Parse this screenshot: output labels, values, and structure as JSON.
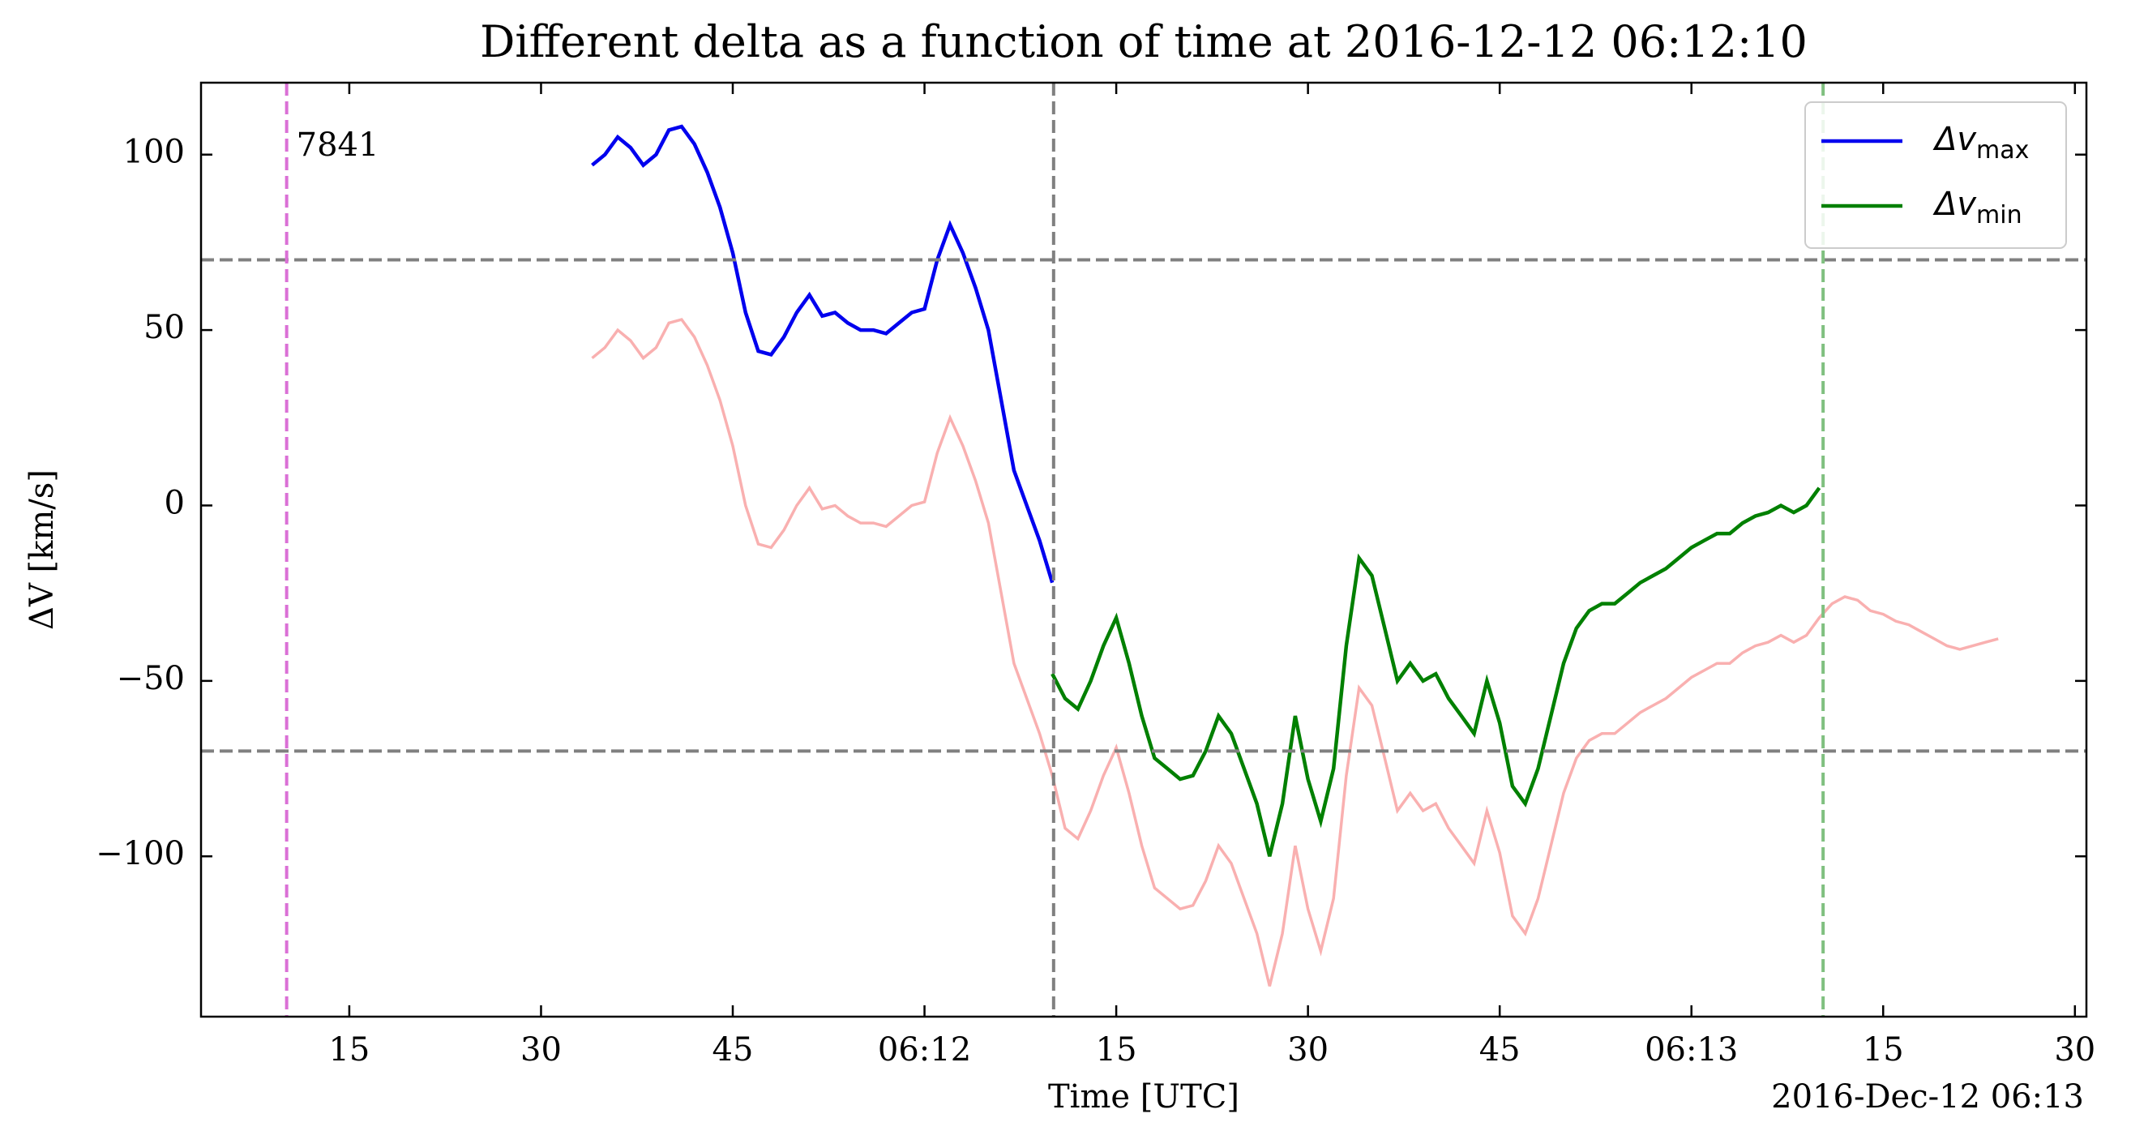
{
  "chart_data": {
    "type": "line",
    "title": "Different delta as a function of time at 2016-12-12 06:12:10",
    "xlabel": "Time [UTC]",
    "ylabel": "ΔV [km/s]",
    "offset_label": "2016-Dec-12 06:13",
    "xlim": [
      "06:11:03.4",
      "06:13:30.9"
    ],
    "ylim": [
      -145.7,
      120.5
    ],
    "xticks": [
      {
        "value": "06:11:15",
        "label": "15"
      },
      {
        "value": "06:11:30",
        "label": "30"
      },
      {
        "value": "06:11:45",
        "label": "45"
      },
      {
        "value": "06:12:00",
        "label": "06:12"
      },
      {
        "value": "06:12:15",
        "label": "15"
      },
      {
        "value": "06:12:30",
        "label": "30"
      },
      {
        "value": "06:12:45",
        "label": "45"
      },
      {
        "value": "06:13:00",
        "label": "06:13"
      },
      {
        "value": "06:13:15",
        "label": "15"
      },
      {
        "value": "06:13:30",
        "label": "30"
      }
    ],
    "yticks": [
      {
        "value": -100,
        "label": "−100"
      },
      {
        "value": -50,
        "label": "−50"
      },
      0,
      50,
      100
    ],
    "legend": "upper right",
    "hlines": [
      70,
      -70
    ],
    "vlines": [
      {
        "x": "06:11:10.1",
        "color": "#da70d6"
      },
      {
        "x": "06:12:10.1",
        "color": "#808080"
      },
      {
        "x": "06:13:10.3",
        "color": "#80c080"
      }
    ],
    "annotation": {
      "text": "7841",
      "color": "#008000"
    },
    "series": [
      {
        "color": "#f9b0b0",
        "x": [
          "06:11:34",
          "06:11:35",
          "06:11:36",
          "06:11:37",
          "06:11:38",
          "06:11:39",
          "06:11:40",
          "06:11:41",
          "06:11:42",
          "06:11:43",
          "06:11:44",
          "06:11:45",
          "06:11:46",
          "06:11:47",
          "06:11:48",
          "06:11:49",
          "06:11:50",
          "06:11:51",
          "06:11:52",
          "06:11:53",
          "06:11:54",
          "06:11:55",
          "06:11:56",
          "06:11:57",
          "06:11:58",
          "06:11:59",
          "06:12:00",
          "06:12:01",
          "06:12:02",
          "06:12:03",
          "06:12:04",
          "06:12:05",
          "06:12:06",
          "06:12:07",
          "06:12:08",
          "06:12:09",
          "06:12:10",
          "06:12:11",
          "06:12:12",
          "06:12:13",
          "06:12:14",
          "06:12:15",
          "06:12:16",
          "06:12:17",
          "06:12:18",
          "06:12:19",
          "06:12:20",
          "06:12:21",
          "06:12:22",
          "06:12:23",
          "06:12:24",
          "06:12:25",
          "06:12:26",
          "06:12:27",
          "06:12:28",
          "06:12:29",
          "06:12:30",
          "06:12:31",
          "06:12:32",
          "06:12:33",
          "06:12:34",
          "06:12:35",
          "06:12:36",
          "06:12:37",
          "06:12:38",
          "06:12:39",
          "06:12:40",
          "06:12:41",
          "06:12:42",
          "06:12:43",
          "06:12:44",
          "06:12:45",
          "06:12:46",
          "06:12:47",
          "06:12:48",
          "06:12:49",
          "06:12:50",
          "06:12:51",
          "06:12:52",
          "06:12:53",
          "06:12:54",
          "06:12:55",
          "06:12:56",
          "06:12:57",
          "06:12:58",
          "06:12:59",
          "06:13:00",
          "06:13:01",
          "06:13:02",
          "06:13:03",
          "06:13:04",
          "06:13:05",
          "06:13:06",
          "06:13:07",
          "06:13:08",
          "06:13:09",
          "06:13:10",
          "06:13:11",
          "06:13:12",
          "06:13:13",
          "06:13:14",
          "06:13:15",
          "06:13:16",
          "06:13:17",
          "06:13:18",
          "06:13:19",
          "06:13:20",
          "06:13:21",
          "06:13:22",
          "06:13:23",
          "06:13:24"
        ],
        "values": [
          42,
          45,
          50,
          47,
          42,
          45,
          52,
          53,
          48,
          40,
          30,
          17,
          0,
          -11,
          -12,
          -7,
          0,
          5,
          -1,
          0,
          -3,
          -5,
          -5,
          -6,
          -3,
          0,
          1,
          15,
          25,
          17,
          7,
          -5,
          -25,
          -45,
          -55,
          -65,
          -77,
          -92,
          -95,
          -87,
          -77,
          -69,
          -82,
          -97,
          -109,
          -112,
          -115,
          -114,
          -107,
          -97,
          -102,
          -112,
          -122,
          -137,
          -122,
          -97,
          -115,
          -127,
          -112,
          -77,
          -52,
          -57,
          -72,
          -87,
          -82,
          -87,
          -85,
          -92,
          -97,
          -102,
          -87,
          -99,
          -117,
          -122,
          -112,
          -97,
          -82,
          -72,
          -67,
          -65,
          -65,
          -62,
          -59,
          -57,
          -55,
          -52,
          -49,
          -47,
          -45,
          -45,
          -42,
          -40,
          -39,
          -37,
          -39,
          -37,
          -32,
          -28,
          -26,
          -27,
          -30,
          -31,
          -33,
          -34,
          -36,
          -38,
          -40,
          -41,
          -40,
          -39,
          -38
        ]
      },
      {
        "name": "Δv",
        "subscript": "max",
        "color": "#0000ee",
        "x": [
          "06:11:34",
          "06:11:35",
          "06:11:36",
          "06:11:37",
          "06:11:38",
          "06:11:39",
          "06:11:40",
          "06:11:41",
          "06:11:42",
          "06:11:43",
          "06:11:44",
          "06:11:45",
          "06:11:46",
          "06:11:47",
          "06:11:48",
          "06:11:49",
          "06:11:50",
          "06:11:51",
          "06:11:52",
          "06:11:53",
          "06:11:54",
          "06:11:55",
          "06:11:56",
          "06:11:57",
          "06:11:58",
          "06:11:59",
          "06:12:00",
          "06:12:01",
          "06:12:02",
          "06:12:03",
          "06:12:04",
          "06:12:05",
          "06:12:06",
          "06:12:07",
          "06:12:08",
          "06:12:09",
          "06:12:10"
        ],
        "values": [
          97,
          100,
          105,
          102,
          97,
          100,
          107,
          108,
          103,
          95,
          85,
          72,
          55,
          44,
          43,
          48,
          55,
          60,
          54,
          55,
          52,
          50,
          50,
          49,
          52,
          55,
          56,
          70,
          80,
          72,
          62,
          50,
          30,
          10,
          0,
          -10,
          -22
        ]
      },
      {
        "name": "Δv",
        "subscript": "min",
        "color": "#008000",
        "x": [
          "06:12:10",
          "06:12:11",
          "06:12:12",
          "06:12:13",
          "06:12:14",
          "06:12:15",
          "06:12:16",
          "06:12:17",
          "06:12:18",
          "06:12:19",
          "06:12:20",
          "06:12:21",
          "06:12:22",
          "06:12:23",
          "06:12:24",
          "06:12:25",
          "06:12:26",
          "06:12:27",
          "06:12:28",
          "06:12:29",
          "06:12:30",
          "06:12:31",
          "06:12:32",
          "06:12:33",
          "06:12:34",
          "06:12:35",
          "06:12:36",
          "06:12:37",
          "06:12:38",
          "06:12:39",
          "06:12:40",
          "06:12:41",
          "06:12:42",
          "06:12:43",
          "06:12:44",
          "06:12:45",
          "06:12:46",
          "06:12:47",
          "06:12:48",
          "06:12:49",
          "06:12:50",
          "06:12:51",
          "06:12:52",
          "06:12:53",
          "06:12:54",
          "06:12:55",
          "06:12:56",
          "06:12:57",
          "06:12:58",
          "06:12:59",
          "06:13:00",
          "06:13:01",
          "06:13:02",
          "06:13:03",
          "06:13:04",
          "06:13:05",
          "06:13:06",
          "06:13:07",
          "06:13:08",
          "06:13:09",
          "06:13:10"
        ],
        "values": [
          -48,
          -55,
          -58,
          -50,
          -40,
          -32,
          -45,
          -60,
          -72,
          -75,
          -78,
          -77,
          -70,
          -60,
          -65,
          -75,
          -85,
          -100,
          -85,
          -60,
          -78,
          -90,
          -75,
          -40,
          -15,
          -20,
          -35,
          -50,
          -45,
          -50,
          -48,
          -55,
          -60,
          -65,
          -50,
          -62,
          -80,
          -85,
          -75,
          -60,
          -45,
          -35,
          -30,
          -28,
          -28,
          -25,
          -22,
          -20,
          -18,
          -15,
          -12,
          -10,
          -8,
          -8,
          -5,
          -3,
          -2,
          0,
          -2,
          0,
          5
        ]
      }
    ]
  }
}
